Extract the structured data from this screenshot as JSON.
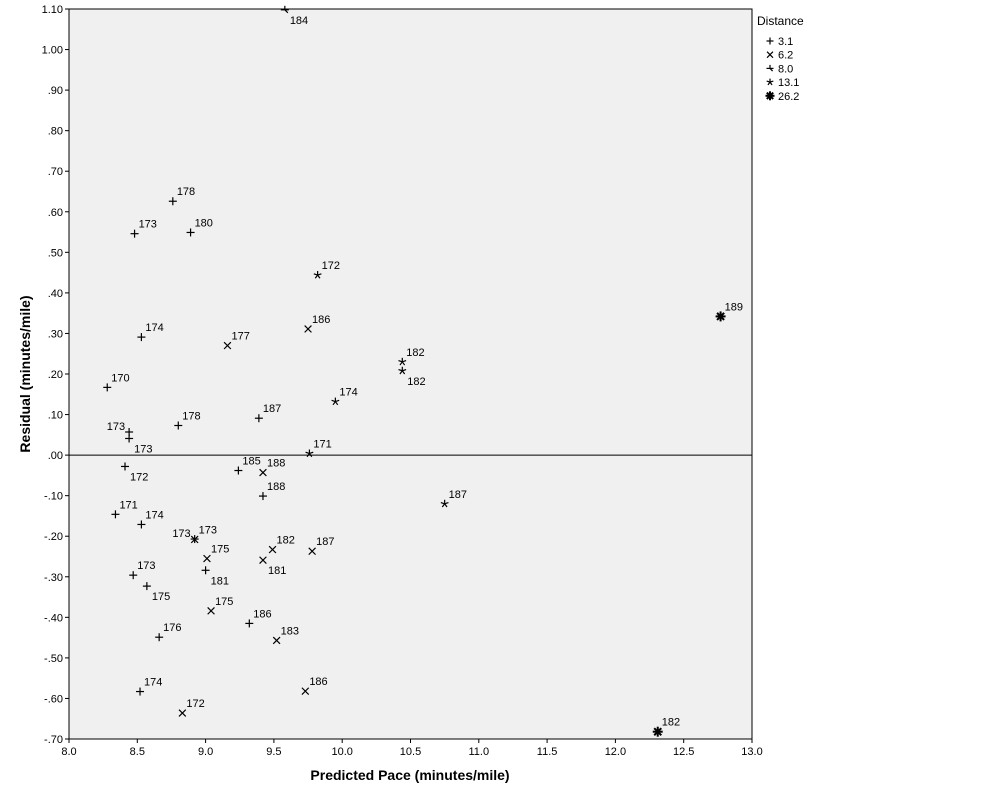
{
  "chart_data": {
    "type": "scatter",
    "xlabel": "Predicted Pace (minutes/mile)",
    "ylabel": "Residual (minutes/mile)",
    "xlim": [
      8.0,
      13.0
    ],
    "ylim": [
      -0.7,
      1.1
    ],
    "x_ticks": [
      {
        "value": 8.0,
        "label": "8.0"
      },
      {
        "value": 8.5,
        "label": "8.5"
      },
      {
        "value": 9.0,
        "label": "9.0"
      },
      {
        "value": 9.5,
        "label": "9.5"
      },
      {
        "value": 10.0,
        "label": "10.0"
      },
      {
        "value": 10.5,
        "label": "10.5"
      },
      {
        "value": 11.0,
        "label": "11.0"
      },
      {
        "value": 11.5,
        "label": "11.5"
      },
      {
        "value": 12.0,
        "label": "12.0"
      },
      {
        "value": 12.5,
        "label": "12.5"
      },
      {
        "value": 13.0,
        "label": "13.0"
      }
    ],
    "y_ticks": [
      {
        "value": 1.1,
        "label": "1.10"
      },
      {
        "value": 1.0,
        "label": "1.00"
      },
      {
        "value": 0.9,
        "label": ".90"
      },
      {
        "value": 0.8,
        "label": ".80"
      },
      {
        "value": 0.7,
        "label": ".70"
      },
      {
        "value": 0.6,
        "label": ".60"
      },
      {
        "value": 0.5,
        "label": ".50"
      },
      {
        "value": 0.4,
        "label": ".40"
      },
      {
        "value": 0.3,
        "label": ".30"
      },
      {
        "value": 0.2,
        "label": ".20"
      },
      {
        "value": 0.1,
        "label": ".10"
      },
      {
        "value": 0.0,
        "label": ".00"
      },
      {
        "value": -0.1,
        "label": "-.10"
      },
      {
        "value": -0.2,
        "label": "-.20"
      },
      {
        "value": -0.3,
        "label": "-.30"
      },
      {
        "value": -0.4,
        "label": "-.40"
      },
      {
        "value": -0.5,
        "label": "-.50"
      },
      {
        "value": -0.6,
        "label": "-.60"
      },
      {
        "value": -0.7,
        "label": "-.70"
      }
    ],
    "reference_line_y": 0.0,
    "grid": false,
    "legend": {
      "title": "Distance",
      "placement": "right",
      "entries": [
        {
          "label": "3.1",
          "marker": "plus"
        },
        {
          "label": "6.2",
          "marker": "x"
        },
        {
          "label": "8.0",
          "marker": "tri"
        },
        {
          "label": "13.1",
          "marker": "star"
        },
        {
          "label": "26.2",
          "marker": "asterisk"
        }
      ]
    },
    "series": [
      {
        "name": "3.1",
        "marker": "plus",
        "points": [
          {
            "x": 8.28,
            "y": 0.167,
            "label": "170",
            "lpos": "ur"
          },
          {
            "x": 8.48,
            "y": 0.546,
            "label": "173",
            "lpos": "ur"
          },
          {
            "x": 8.76,
            "y": 0.626,
            "label": "178",
            "lpos": "ur"
          },
          {
            "x": 8.89,
            "y": 0.549,
            "label": "180",
            "lpos": "ur"
          },
          {
            "x": 8.53,
            "y": 0.291,
            "label": "174",
            "lpos": "ur"
          },
          {
            "x": 8.8,
            "y": 0.073,
            "label": "178",
            "lpos": "ur"
          },
          {
            "x": 8.44,
            "y": 0.057,
            "label": "173",
            "lpos": "ul"
          },
          {
            "x": 8.44,
            "y": 0.041,
            "label": "173",
            "lpos": "lr"
          },
          {
            "x": 9.39,
            "y": 0.091,
            "label": "187",
            "lpos": "ur"
          },
          {
            "x": 8.41,
            "y": -0.028,
            "label": "172",
            "lpos": "lr"
          },
          {
            "x": 9.24,
            "y": -0.038,
            "label": "185",
            "lpos": "ur"
          },
          {
            "x": 8.34,
            "y": -0.146,
            "label": "171",
            "lpos": "ur"
          },
          {
            "x": 8.53,
            "y": -0.171,
            "label": "174",
            "lpos": "ur"
          },
          {
            "x": 9.42,
            "y": -0.101,
            "label": "188",
            "lpos": "ur"
          },
          {
            "x": 8.47,
            "y": -0.296,
            "label": "173",
            "lpos": "ur"
          },
          {
            "x": 8.57,
            "y": -0.323,
            "label": "175",
            "lpos": "lr"
          },
          {
            "x": 9.0,
            "y": -0.284,
            "label": "181",
            "lpos": "lr"
          },
          {
            "x": 8.66,
            "y": -0.449,
            "label": "176",
            "lpos": "ur"
          },
          {
            "x": 9.32,
            "y": -0.415,
            "label": "186",
            "lpos": "ur"
          },
          {
            "x": 8.52,
            "y": -0.583,
            "label": "174",
            "lpos": "ur"
          },
          {
            "x": 8.92,
            "y": -0.207,
            "label": "173",
            "lpos": "ul"
          }
        ]
      },
      {
        "name": "6.2",
        "marker": "x",
        "points": [
          {
            "x": 9.16,
            "y": 0.27,
            "label": "177",
            "lpos": "ur"
          },
          {
            "x": 9.75,
            "y": 0.311,
            "label": "186",
            "lpos": "ur"
          },
          {
            "x": 9.42,
            "y": -0.043,
            "label": "188",
            "lpos": "ur"
          },
          {
            "x": 8.92,
            "y": -0.208,
            "label": "173",
            "lpos": "ur"
          },
          {
            "x": 9.01,
            "y": -0.255,
            "label": "175",
            "lpos": "ur"
          },
          {
            "x": 9.49,
            "y": -0.233,
            "label": "182",
            "lpos": "ur"
          },
          {
            "x": 9.42,
            "y": -0.259,
            "label": "181",
            "lpos": "lr"
          },
          {
            "x": 9.78,
            "y": -0.237,
            "label": "187",
            "lpos": "ur"
          },
          {
            "x": 9.04,
            "y": -0.384,
            "label": "175",
            "lpos": "ur"
          },
          {
            "x": 9.52,
            "y": -0.457,
            "label": "183",
            "lpos": "ur"
          },
          {
            "x": 9.73,
            "y": -0.582,
            "label": "186",
            "lpos": "ur"
          },
          {
            "x": 8.83,
            "y": -0.636,
            "label": "172",
            "lpos": "ur"
          }
        ]
      },
      {
        "name": "8.0",
        "marker": "tri",
        "points": [
          {
            "x": 9.58,
            "y": 1.098,
            "label": "184",
            "lpos": "lr"
          }
        ]
      },
      {
        "name": "13.1",
        "marker": "star",
        "points": [
          {
            "x": 9.82,
            "y": 0.444,
            "label": "172",
            "lpos": "ur"
          },
          {
            "x": 10.44,
            "y": 0.23,
            "label": "182",
            "lpos": "ur"
          },
          {
            "x": 10.44,
            "y": 0.208,
            "label": "182",
            "lpos": "lr"
          },
          {
            "x": 9.95,
            "y": 0.132,
            "label": "174",
            "lpos": "ur"
          },
          {
            "x": 9.76,
            "y": 0.004,
            "label": "171",
            "lpos": "ur"
          },
          {
            "x": 10.75,
            "y": -0.12,
            "label": "187",
            "lpos": "ur"
          }
        ]
      },
      {
        "name": "26.2",
        "marker": "asterisk",
        "points": [
          {
            "x": 12.77,
            "y": 0.342,
            "label": "189",
            "lpos": "ur"
          },
          {
            "x": 12.31,
            "y": -0.682,
            "label": "182",
            "lpos": "ur"
          }
        ]
      }
    ]
  }
}
